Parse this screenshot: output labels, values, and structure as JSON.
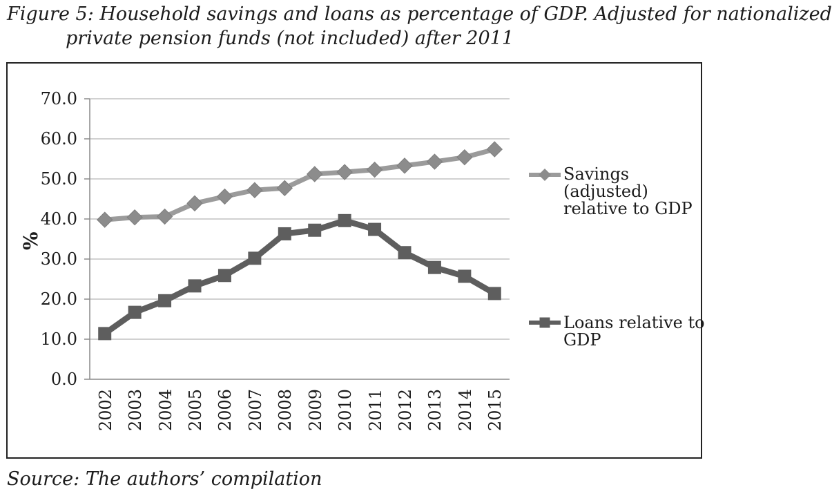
{
  "figure": {
    "title_line1": "Figure 5: Household savings and loans as percentage of GDP. Adjusted for nationalized",
    "title_line2": "private pension funds (not included) after 2011",
    "source": "Source: The authors’ compilation"
  },
  "colors": {
    "savings_line": "#9b9b9b",
    "savings_marker": "#8c8c8c",
    "loans_line": "#5e5e5e",
    "loans_marker": "#5e5e5e",
    "gridline": "#a3a3a3",
    "axis": "#8a8a8a",
    "frame": "#222222",
    "text": "#1c1c1c"
  },
  "chart_data": {
    "type": "line",
    "title": "",
    "xlabel": "",
    "ylabel": "%",
    "ylim": [
      0,
      70
    ],
    "ytick_step": 10,
    "yticks": [
      "0.0",
      "10.0",
      "20.0",
      "30.0",
      "40.0",
      "50.0",
      "60.0",
      "70.0"
    ],
    "grid": true,
    "legend_position": "right",
    "categories": [
      "2002",
      "2003",
      "2004",
      "2005",
      "2006",
      "2007",
      "2008",
      "2009",
      "2010",
      "2011",
      "2012",
      "2013",
      "2014",
      "2015"
    ],
    "series": [
      {
        "name": "Savings (adjusted) relative to GDP",
        "id": "savings",
        "marker": "diamond",
        "values": [
          39.8,
          40.4,
          40.6,
          43.9,
          45.6,
          47.2,
          47.7,
          51.2,
          51.7,
          52.3,
          53.3,
          54.3,
          55.4,
          57.4
        ]
      },
      {
        "name": "Loans relative to GDP",
        "id": "loans",
        "marker": "square",
        "values": [
          11.4,
          16.7,
          19.6,
          23.3,
          25.9,
          30.2,
          36.3,
          37.2,
          39.6,
          37.4,
          31.6,
          27.9,
          25.7,
          21.4
        ]
      }
    ],
    "legend": [
      {
        "lines": [
          "Savings",
          "(adjusted)",
          "relative to GDP"
        ]
      },
      {
        "lines": [
          "Loans relative to",
          "GDP"
        ]
      }
    ]
  }
}
